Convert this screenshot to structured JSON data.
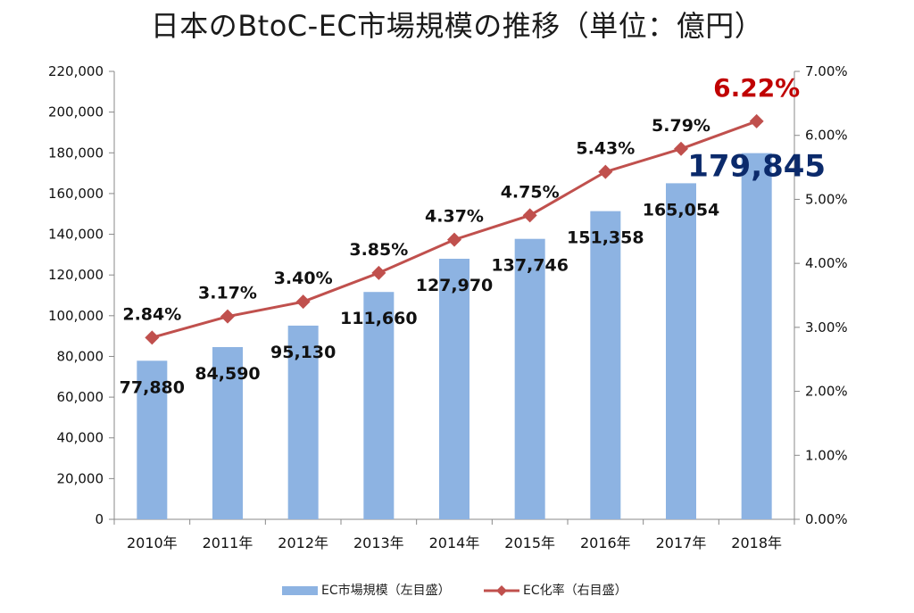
{
  "chart_data": {
    "type": "bar",
    "title": "日本のBtoC-EC市場規模の推移（単位：億円）",
    "categories": [
      "2010年",
      "2011年",
      "2012年",
      "2013年",
      "2014年",
      "2015年",
      "2016年",
      "2017年",
      "2018年"
    ],
    "series": [
      {
        "name": "EC市場規模（左目盛）",
        "type": "bar",
        "axis": "left",
        "values": [
          77880,
          84590,
          95130,
          111660,
          127970,
          137746,
          151358,
          165054,
          179845
        ],
        "labels": [
          "77,880",
          "84,590",
          "95,130",
          "111,660",
          "127,970",
          "137,746",
          "151,358",
          "165,054",
          "179,845"
        ],
        "color": "#8db3e2"
      },
      {
        "name": "EC化率（右目盛）",
        "type": "line",
        "axis": "right",
        "values": [
          2.84,
          3.17,
          3.4,
          3.85,
          4.37,
          4.75,
          5.43,
          5.79,
          6.22
        ],
        "labels": [
          "2.84%",
          "3.17%",
          "3.40%",
          "3.85%",
          "4.37%",
          "4.75%",
          "5.43%",
          "5.79%",
          "6.22%"
        ],
        "color": "#c0504d"
      }
    ],
    "left_axis": {
      "ylim": [
        0,
        220000
      ],
      "ticks": [
        "0",
        "20,000",
        "40,000",
        "60,000",
        "80,000",
        "100,000",
        "120,000",
        "140,000",
        "160,000",
        "180,000",
        "200,000",
        "220,000"
      ]
    },
    "right_axis": {
      "ylim": [
        0,
        7
      ],
      "ticks": [
        "0.00%",
        "1.00%",
        "2.00%",
        "3.00%",
        "4.00%",
        "5.00%",
        "6.00%",
        "7.00%"
      ]
    },
    "highlight": {
      "bar_label_color": "#0b2a6b",
      "rate_label_color": "#c00000"
    },
    "grid": false,
    "legend_position": "bottom"
  }
}
